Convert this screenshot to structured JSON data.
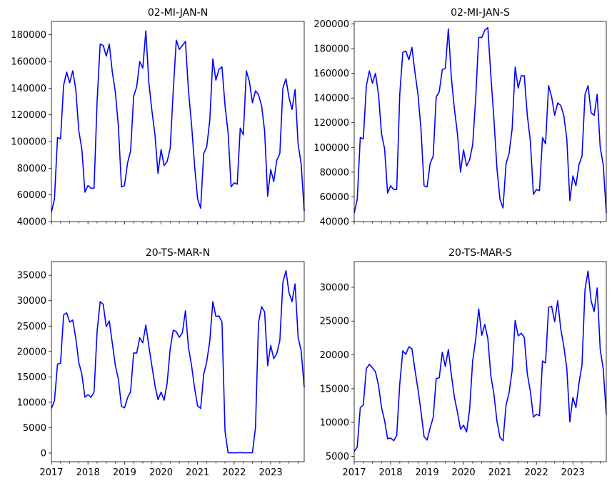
{
  "chart_data": [
    {
      "type": "line",
      "title": "02-MI-JAN-N",
      "color": "#0000ff",
      "x_range": [
        "2017-01",
        "2023-12"
      ],
      "ylim": [
        40000,
        190000
      ],
      "y_ticks": [
        40000,
        60000,
        80000,
        100000,
        120000,
        140000,
        160000,
        180000
      ],
      "x_tick_labels": [],
      "values": [
        47000,
        57000,
        103000,
        102000,
        142000,
        152000,
        144000,
        153000,
        139000,
        108000,
        94000,
        62000,
        67000,
        65000,
        65000,
        130000,
        173000,
        172000,
        164000,
        173000,
        152000,
        137000,
        111000,
        66000,
        67000,
        84000,
        93000,
        134000,
        141000,
        160000,
        155000,
        183000,
        144000,
        123000,
        105000,
        76000,
        94000,
        82000,
        85000,
        95000,
        138000,
        176000,
        169000,
        172000,
        175000,
        138000,
        113000,
        82000,
        57000,
        50000,
        91000,
        96000,
        116000,
        162000,
        146000,
        154000,
        156000,
        127000,
        107000,
        66000,
        69000,
        68000,
        110000,
        105000,
        153000,
        145000,
        129000,
        138000,
        135000,
        127000,
        108000,
        59000,
        79000,
        70000,
        86000,
        91000,
        140000,
        147000,
        133000,
        124000,
        139000,
        98000,
        83000,
        48000
      ]
    },
    {
      "type": "line",
      "title": "02-MI-JAN-S",
      "color": "#0000ff",
      "x_range": [
        "2017-01",
        "2023-12"
      ],
      "ylim": [
        40000,
        202000
      ],
      "y_ticks": [
        40000,
        60000,
        80000,
        100000,
        120000,
        140000,
        160000,
        180000,
        200000
      ],
      "x_tick_labels": [],
      "values": [
        47000,
        58000,
        108000,
        107000,
        150000,
        162000,
        152000,
        160000,
        143000,
        111000,
        99000,
        63000,
        69000,
        66000,
        66000,
        143000,
        177000,
        178000,
        171000,
        181000,
        161000,
        143000,
        114000,
        69000,
        68000,
        87000,
        93000,
        141000,
        145000,
        163000,
        164000,
        196000,
        156000,
        131000,
        111000,
        80000,
        98000,
        85000,
        90000,
        102000,
        140000,
        189000,
        189000,
        195000,
        197000,
        158000,
        123000,
        83000,
        58000,
        51000,
        87000,
        95000,
        115000,
        165000,
        148000,
        158000,
        158000,
        126000,
        105000,
        62000,
        66000,
        65000,
        108000,
        103000,
        150000,
        141000,
        126000,
        136000,
        134000,
        126000,
        107000,
        57000,
        77000,
        69000,
        86000,
        93000,
        143000,
        150000,
        128000,
        126000,
        143000,
        100000,
        86000,
        47000
      ]
    },
    {
      "type": "line",
      "title": "20-TS-MAR-N",
      "color": "#0000ff",
      "x_range": [
        "2017-01",
        "2023-12"
      ],
      "ylim": [
        -1700,
        37700
      ],
      "y_ticks": [
        0,
        5000,
        10000,
        15000,
        20000,
        25000,
        30000,
        35000
      ],
      "x_tick_labels": [
        "2017",
        "2018",
        "2019",
        "2020",
        "2021",
        "2022",
        "2023"
      ],
      "values": [
        8800,
        10300,
        17500,
        17700,
        27200,
        27600,
        25800,
        26200,
        22600,
        17800,
        15500,
        11000,
        11500,
        11000,
        12000,
        24000,
        29800,
        29300,
        24900,
        26000,
        21600,
        17200,
        14500,
        9200,
        8900,
        10900,
        12100,
        19700,
        19700,
        22700,
        21700,
        25200,
        21000,
        17100,
        13300,
        10500,
        12000,
        10400,
        13800,
        20600,
        24200,
        23900,
        22800,
        23700,
        28000,
        20800,
        17300,
        12800,
        9300,
        8800,
        15500,
        18000,
        22100,
        29800,
        26900,
        27000,
        25800,
        4300,
        50,
        50,
        50,
        50,
        100,
        50,
        50,
        50,
        50,
        5000,
        25700,
        28800,
        27800,
        17200,
        21200,
        18600,
        19600,
        22200,
        33600,
        35900,
        31600,
        29800,
        33300,
        22800,
        20100,
        13000
      ]
    },
    {
      "type": "line",
      "title": "20-TS-MAR-S",
      "color": "#0000ff",
      "x_range": [
        "2017-01",
        "2023-12"
      ],
      "ylim": [
        4200,
        33800
      ],
      "y_ticks": [
        5000,
        10000,
        15000,
        20000,
        25000,
        30000
      ],
      "x_tick_labels": [
        "2017",
        "2018",
        "2019",
        "2020",
        "2021",
        "2022",
        "2023"
      ],
      "values": [
        5700,
        6400,
        12200,
        12600,
        18000,
        18600,
        18100,
        17500,
        15500,
        12200,
        10300,
        7600,
        7700,
        7300,
        8100,
        15700,
        20600,
        20100,
        21200,
        20900,
        17800,
        14900,
        11600,
        7900,
        7400,
        9200,
        10700,
        16500,
        16600,
        20400,
        18300,
        20800,
        17000,
        13700,
        11500,
        9000,
        9600,
        8600,
        11900,
        19100,
        22300,
        26800,
        22900,
        24500,
        22400,
        16900,
        14200,
        10200,
        7800,
        7300,
        12600,
        14400,
        17700,
        25100,
        22800,
        23200,
        22600,
        17200,
        14600,
        10800,
        11200,
        11000,
        19100,
        18800,
        27000,
        27200,
        24900,
        28000,
        23900,
        21300,
        18000,
        10100,
        13700,
        12200,
        15800,
        18500,
        29700,
        32400,
        28000,
        26400,
        29900,
        20800,
        17900,
        11200
      ]
    }
  ]
}
